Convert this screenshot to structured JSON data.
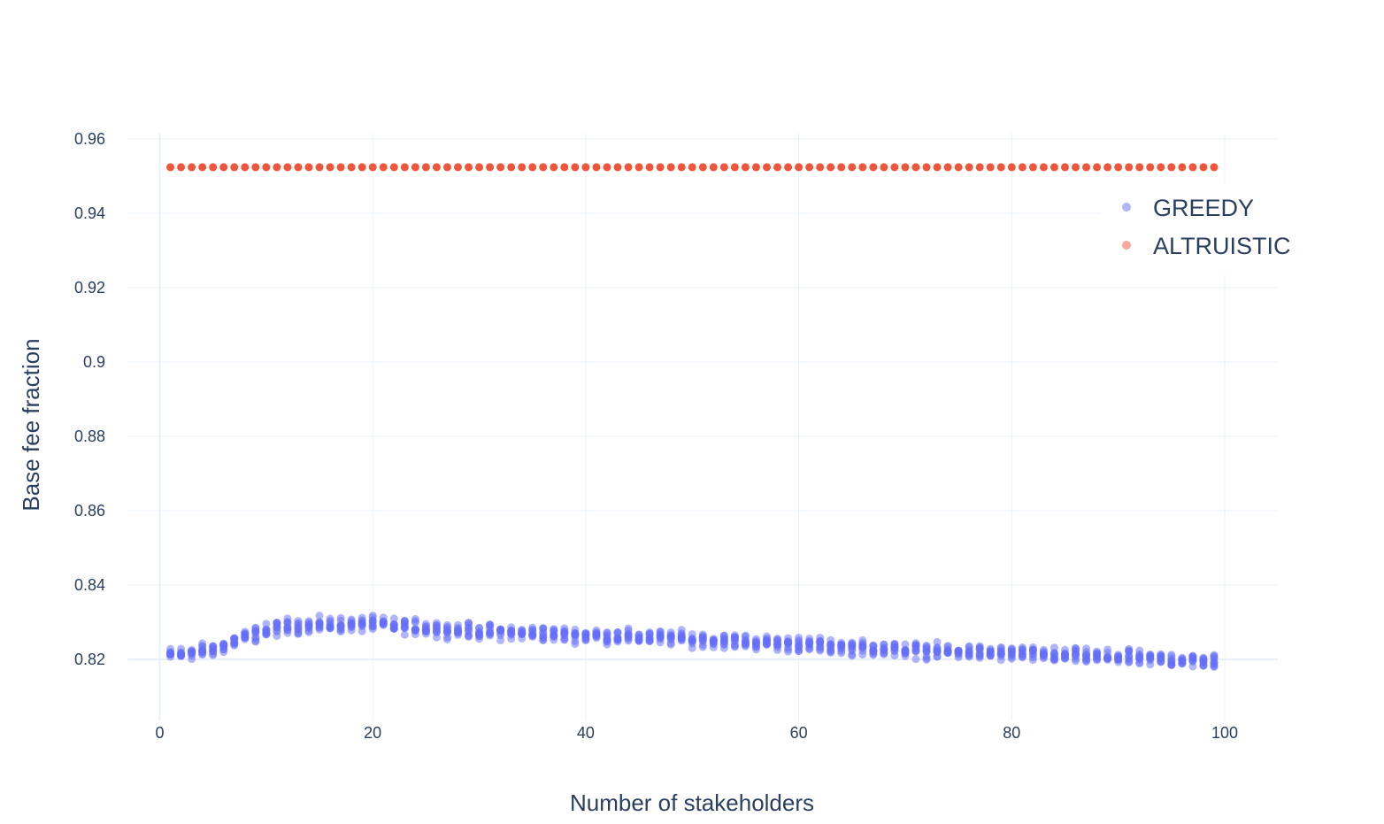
{
  "chart_data": {
    "type": "scatter",
    "title": "",
    "xlabel": "Number of stakeholders",
    "ylabel": "Base fee fraction",
    "xlim": [
      -3,
      105
    ],
    "ylim": [
      0.8035,
      0.9615
    ],
    "x_ticks": [
      0,
      20,
      40,
      60,
      80,
      100
    ],
    "x_tick_labels": [
      "0",
      "20",
      "40",
      "60",
      "80",
      "100"
    ],
    "y_ticks": [
      0.82,
      0.84,
      0.86,
      0.88,
      0.9,
      0.92,
      0.94,
      0.96
    ],
    "y_tick_labels": [
      "0.82",
      "0.84",
      "0.86",
      "0.88",
      "0.9",
      "0.92",
      "0.94",
      "0.96"
    ],
    "grid": true,
    "legend_placement": "right-top",
    "series": [
      {
        "name": "GREEDY",
        "color": "#636efa",
        "opacity": 0.5,
        "x_range": [
          1,
          99
        ],
        "samples_per_x": 10,
        "trend": [
          [
            1,
            0.8212
          ],
          [
            5,
            0.8225
          ],
          [
            8,
            0.826
          ],
          [
            12,
            0.829
          ],
          [
            20,
            0.8295
          ],
          [
            30,
            0.8275
          ],
          [
            40,
            0.8265
          ],
          [
            50,
            0.8255
          ],
          [
            60,
            0.824
          ],
          [
            70,
            0.8225
          ],
          [
            80,
            0.8215
          ],
          [
            90,
            0.8205
          ],
          [
            99,
            0.8195
          ]
        ],
        "spread": 0.0022
      },
      {
        "name": "ALTRUISTIC",
        "color": "#ef553b",
        "opacity": 1.0,
        "x_range": [
          1,
          99
        ],
        "value": 0.9524
      }
    ]
  },
  "legend": {
    "items": [
      {
        "label": "GREEDY",
        "color": "#636efa",
        "opacity": 0.5
      },
      {
        "label": "ALTRUISTIC",
        "color": "#ef553b",
        "opacity": 0.5
      }
    ]
  }
}
